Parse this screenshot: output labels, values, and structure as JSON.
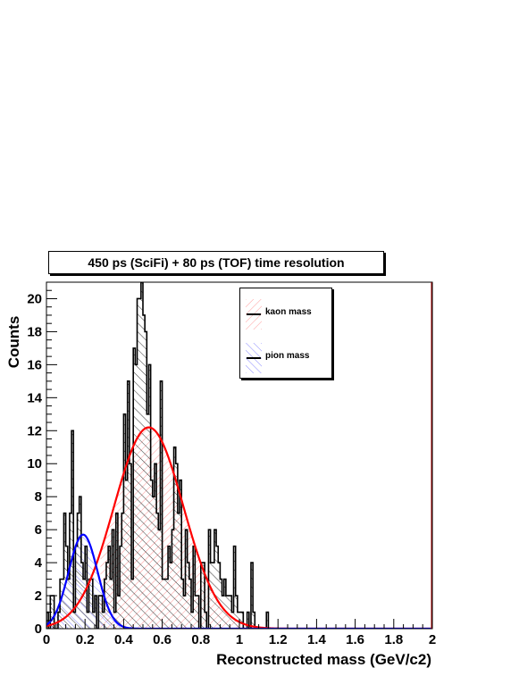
{
  "chart_data": {
    "type": "bar",
    "title": "450 ps (SciFi) + 80 ps (TOF) time resolution",
    "xlabel": "Reconstructed mass (GeV/c2)",
    "ylabel": "Counts",
    "xlim": [
      0,
      2
    ],
    "ylim": [
      0,
      21
    ],
    "x_ticks": [
      0,
      0.2,
      0.4,
      0.6,
      0.8,
      1,
      1.2,
      1.4,
      1.6,
      1.8,
      2
    ],
    "x_tick_labels": [
      "0",
      "0.2",
      "0.4",
      "0.6",
      "0.8",
      "1",
      "1.2",
      "1.4",
      "1.6",
      "1.8",
      "2"
    ],
    "y_ticks": [
      0,
      2,
      4,
      6,
      8,
      10,
      12,
      14,
      16,
      18,
      20
    ],
    "y_tick_labels": [
      "0",
      "2",
      "4",
      "6",
      "8",
      "10",
      "12",
      "14",
      "16",
      "18",
      "20"
    ],
    "bin_width": 0.01,
    "bin_start": 0,
    "histogram_counts": [
      1,
      0,
      2,
      2,
      0,
      0,
      1,
      3,
      3,
      7,
      5,
      3,
      7,
      12,
      1,
      5,
      7,
      8,
      4,
      3,
      5,
      1,
      3,
      3,
      1,
      2,
      0,
      2,
      2,
      1,
      3,
      4,
      5,
      3,
      6,
      1,
      7,
      2,
      5,
      7,
      13,
      9,
      15,
      10,
      3,
      17,
      16,
      20,
      20,
      21,
      19,
      18,
      13,
      16,
      9,
      8,
      10,
      7,
      6,
      15,
      3,
      3,
      3,
      5,
      4,
      6,
      11,
      10,
      7,
      9,
      3,
      2,
      6,
      4,
      3,
      1,
      5,
      2,
      2,
      0,
      4,
      4,
      1,
      0,
      6,
      4,
      4,
      6,
      5,
      4,
      3,
      2,
      3,
      2,
      2,
      2,
      1,
      5,
      2,
      1,
      1,
      1,
      0,
      0,
      1,
      0,
      4,
      1,
      0,
      0,
      0,
      0,
      0,
      0,
      1,
      0,
      0,
      0,
      0,
      0,
      0,
      0,
      0,
      0,
      0,
      0,
      0,
      0,
      0,
      0,
      0,
      0,
      0,
      0,
      0,
      0,
      0,
      0,
      0,
      0,
      0,
      0,
      0,
      0,
      0,
      0,
      0,
      0,
      0,
      0,
      0,
      0,
      0,
      0,
      0,
      0,
      0,
      0,
      0,
      0,
      0,
      0,
      0,
      0,
      0,
      0,
      0,
      0,
      0,
      0,
      0,
      0,
      0,
      0,
      0,
      0,
      0,
      0,
      0,
      0,
      0,
      0,
      0,
      0,
      0,
      0,
      0,
      0,
      0,
      0,
      0,
      0,
      0,
      0,
      0,
      0,
      0,
      0,
      0,
      0
    ],
    "series": [
      {
        "name": "kaon mass",
        "fit": "gaussian",
        "amplitude": 12.2,
        "mean": 0.53,
        "sigma": 0.18,
        "color": "#ff0000",
        "fill_color": "#ff9999",
        "fill_range": [
          0.28,
          1.2
        ]
      },
      {
        "name": "pion mass",
        "fit": "gaussian",
        "amplitude": 5.7,
        "mean": 0.19,
        "sigma": 0.075,
        "color": "#0000ff",
        "fill_color": "#8888ff",
        "fill_range": [
          0.02,
          0.42
        ]
      }
    ],
    "legend_placement": "top-center",
    "grid": false
  }
}
